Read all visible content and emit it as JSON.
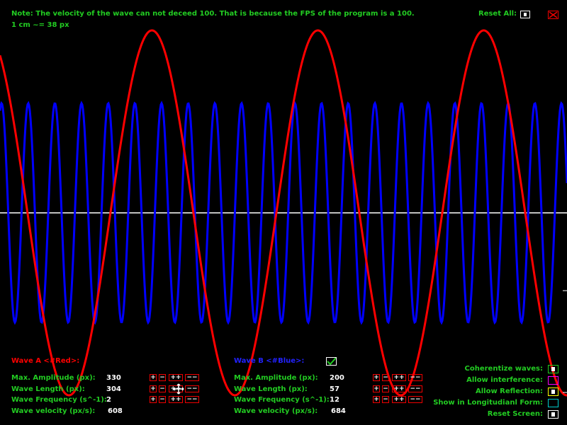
{
  "header": {
    "note": "Note: The velocity of the wave can not deceed 100. That is because the FPS of the program is a 100.",
    "scale": "1 cm ~= 38 px",
    "reset_all_label": "Reset All:"
  },
  "colors": {
    "wave_a": "#ff0000",
    "wave_b": "#0000ff",
    "axis": "#ffffff",
    "label_green": "#22cc22",
    "value_white": "#ffffff"
  },
  "wave_a": {
    "title": "Wave A <#Red>:",
    "rows": [
      {
        "label": "Max. Amplitude (px):",
        "value": "330"
      },
      {
        "label": "Wave Length (px):",
        "value": "304"
      },
      {
        "label": "Wave Frequency (s^-1):",
        "value": "2"
      },
      {
        "label": "Wave velocity  (px/s):",
        "value": "608"
      }
    ]
  },
  "wave_b": {
    "title": "Wave B <#Blue>:",
    "rows": [
      {
        "label": "Max. Amplitude (px):",
        "value": "200"
      },
      {
        "label": "Wave Length (px):",
        "value": "57"
      },
      {
        "label": "Wave Frequency (s^-1):",
        "value": "12"
      },
      {
        "label": "Wave velocity  (px/s):",
        "value": "684"
      }
    ]
  },
  "controls": {
    "plus": "+",
    "minus": "−",
    "plus_plus": "++",
    "minus_minus": "−−"
  },
  "options": [
    {
      "label": "Coherentize waves:",
      "color": "#22cc22",
      "dot": true
    },
    {
      "label": "Allow interference:",
      "color": "#ff00ff",
      "dot": false
    },
    {
      "label": "Allow Reflection:",
      "color": "#ffff00",
      "dot": true
    },
    {
      "label": "Show in Longitudianl Form:",
      "color": "#00cccc",
      "dot": false
    },
    {
      "label": "Reset Screen:",
      "color": "#ffffff",
      "dot": true
    }
  ]
}
